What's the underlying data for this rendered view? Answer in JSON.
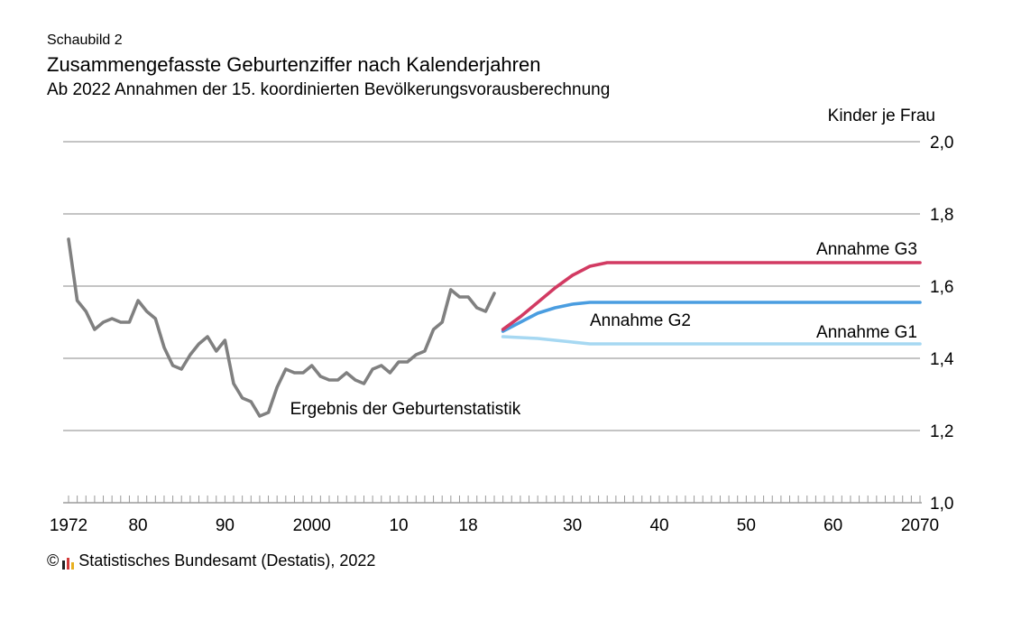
{
  "header": {
    "kicker": "Schaubild 2",
    "title": "Zusammengefasste Geburtenziffer nach Kalenderjahren",
    "subtitle": "Ab 2022 Annahmen der 15. koordinierten Bevölkerungsvorausberechnung",
    "unit": "Kinder je Frau"
  },
  "footer": {
    "copyright": "©",
    "source": "Statistisches Bundesamt (Destatis), 2022"
  },
  "colors": {
    "history": "#808080",
    "g3": "#d23a62",
    "g2": "#4a9de0",
    "g1": "#a6d8f2",
    "grid": "#a0a0a0"
  },
  "chart_data": {
    "type": "line",
    "xlim": [
      1972,
      2070
    ],
    "ylim": [
      1.0,
      2.0
    ],
    "yticks": [
      {
        "value": 2.0,
        "label": "2,0"
      },
      {
        "value": 1.8,
        "label": "1,8"
      },
      {
        "value": 1.6,
        "label": "1,6"
      },
      {
        "value": 1.4,
        "label": "1,4"
      },
      {
        "value": 1.2,
        "label": "1,2"
      },
      {
        "value": 1.0,
        "label": "1,0"
      }
    ],
    "xticks": [
      {
        "value": 1972,
        "label": "1972"
      },
      {
        "value": 1980,
        "label": "80"
      },
      {
        "value": 1990,
        "label": "90"
      },
      {
        "value": 2000,
        "label": "2000"
      },
      {
        "value": 2010,
        "label": "10"
      },
      {
        "value": 2018,
        "label": "18"
      },
      {
        "value": 2030,
        "label": "30"
      },
      {
        "value": 2040,
        "label": "40"
      },
      {
        "value": 2050,
        "label": "50"
      },
      {
        "value": 2060,
        "label": "60"
      },
      {
        "value": 2070,
        "label": "2070"
      }
    ],
    "series": [
      {
        "key": "history",
        "name": "Ergebnis der Geburtenstatistik",
        "x": [
          1972,
          1973,
          1974,
          1975,
          1976,
          1977,
          1978,
          1979,
          1980,
          1981,
          1982,
          1983,
          1984,
          1985,
          1986,
          1987,
          1988,
          1989,
          1990,
          1991,
          1992,
          1993,
          1994,
          1995,
          1996,
          1997,
          1998,
          1999,
          2000,
          2001,
          2002,
          2003,
          2004,
          2005,
          2006,
          2007,
          2008,
          2009,
          2010,
          2011,
          2012,
          2013,
          2014,
          2015,
          2016,
          2017,
          2018,
          2019,
          2020,
          2021
        ],
        "values": [
          1.73,
          1.56,
          1.53,
          1.48,
          1.5,
          1.51,
          1.5,
          1.5,
          1.56,
          1.53,
          1.51,
          1.43,
          1.38,
          1.37,
          1.41,
          1.44,
          1.46,
          1.42,
          1.45,
          1.33,
          1.29,
          1.28,
          1.24,
          1.25,
          1.32,
          1.37,
          1.36,
          1.36,
          1.38,
          1.35,
          1.34,
          1.34,
          1.36,
          1.34,
          1.33,
          1.37,
          1.38,
          1.36,
          1.39,
          1.39,
          1.41,
          1.42,
          1.48,
          1.5,
          1.59,
          1.57,
          1.57,
          1.54,
          1.53,
          1.58
        ]
      },
      {
        "key": "g3",
        "name": "Annahme G3",
        "x": [
          2022,
          2024,
          2026,
          2028,
          2030,
          2032,
          2034,
          2036,
          2040,
          2050,
          2060,
          2070
        ],
        "values": [
          1.48,
          1.515,
          1.555,
          1.595,
          1.63,
          1.655,
          1.665,
          1.665,
          1.665,
          1.665,
          1.665,
          1.665
        ]
      },
      {
        "key": "g2",
        "name": "Annahme G2",
        "x": [
          2022,
          2024,
          2026,
          2028,
          2030,
          2032,
          2034,
          2040,
          2050,
          2060,
          2070
        ],
        "values": [
          1.475,
          1.5,
          1.525,
          1.54,
          1.55,
          1.555,
          1.555,
          1.555,
          1.555,
          1.555,
          1.555
        ]
      },
      {
        "key": "g1",
        "name": "Annahme G1",
        "x": [
          2022,
          2026,
          2030,
          2032,
          2040,
          2050,
          2060,
          2070
        ],
        "values": [
          1.46,
          1.455,
          1.445,
          1.44,
          1.44,
          1.44,
          1.44,
          1.44
        ]
      }
    ],
    "annotations": [
      {
        "key": "g3",
        "text": "Annahme G3"
      },
      {
        "key": "g2",
        "text": "Annahme G2"
      },
      {
        "key": "g1",
        "text": "Annahme G1"
      },
      {
        "key": "history",
        "text": "Ergebnis der Geburtenstatistik"
      }
    ],
    "grid": true
  }
}
